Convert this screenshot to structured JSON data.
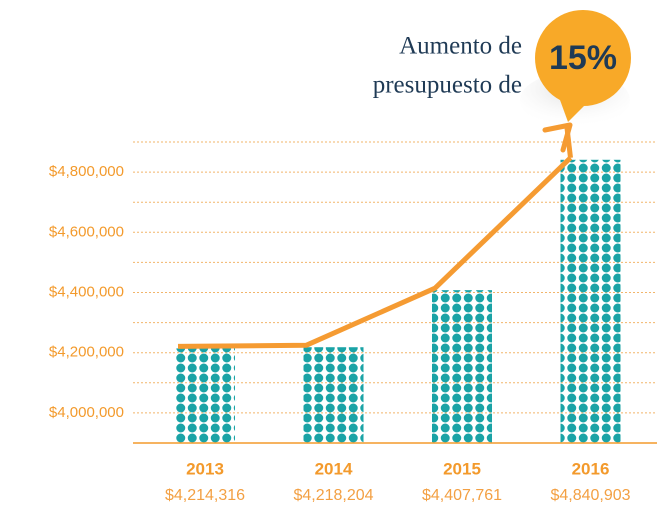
{
  "chart_data": {
    "type": "bar",
    "categories": [
      "2013",
      "2014",
      "2015",
      "2016"
    ],
    "values": [
      4214316,
      4218204,
      4407761,
      4840903
    ],
    "value_labels": [
      "$4,214,316",
      "$4,218,204",
      "$4,407,761",
      "$4,840,903"
    ],
    "color": "#1aa3a6",
    "line_color": "#f59b32",
    "ylim": [
      3900000,
      4900000
    ],
    "yticks": [
      {
        "value": 4000000,
        "label": "$4,000,000"
      },
      {
        "value": 4200000,
        "label": "$4,200,000"
      },
      {
        "value": 4400000,
        "label": "$4,400,000"
      },
      {
        "value": 4600000,
        "label": "$4,600,000"
      },
      {
        "value": 4800000,
        "label": "$4,800,000"
      }
    ],
    "minor_yticks": [
      3900000,
      4100000,
      4300000,
      4500000,
      4700000,
      4900000
    ],
    "grid": true,
    "annotation": {
      "lines": [
        "Aumento de",
        "presupuesto de"
      ],
      "badge": "15%"
    }
  }
}
